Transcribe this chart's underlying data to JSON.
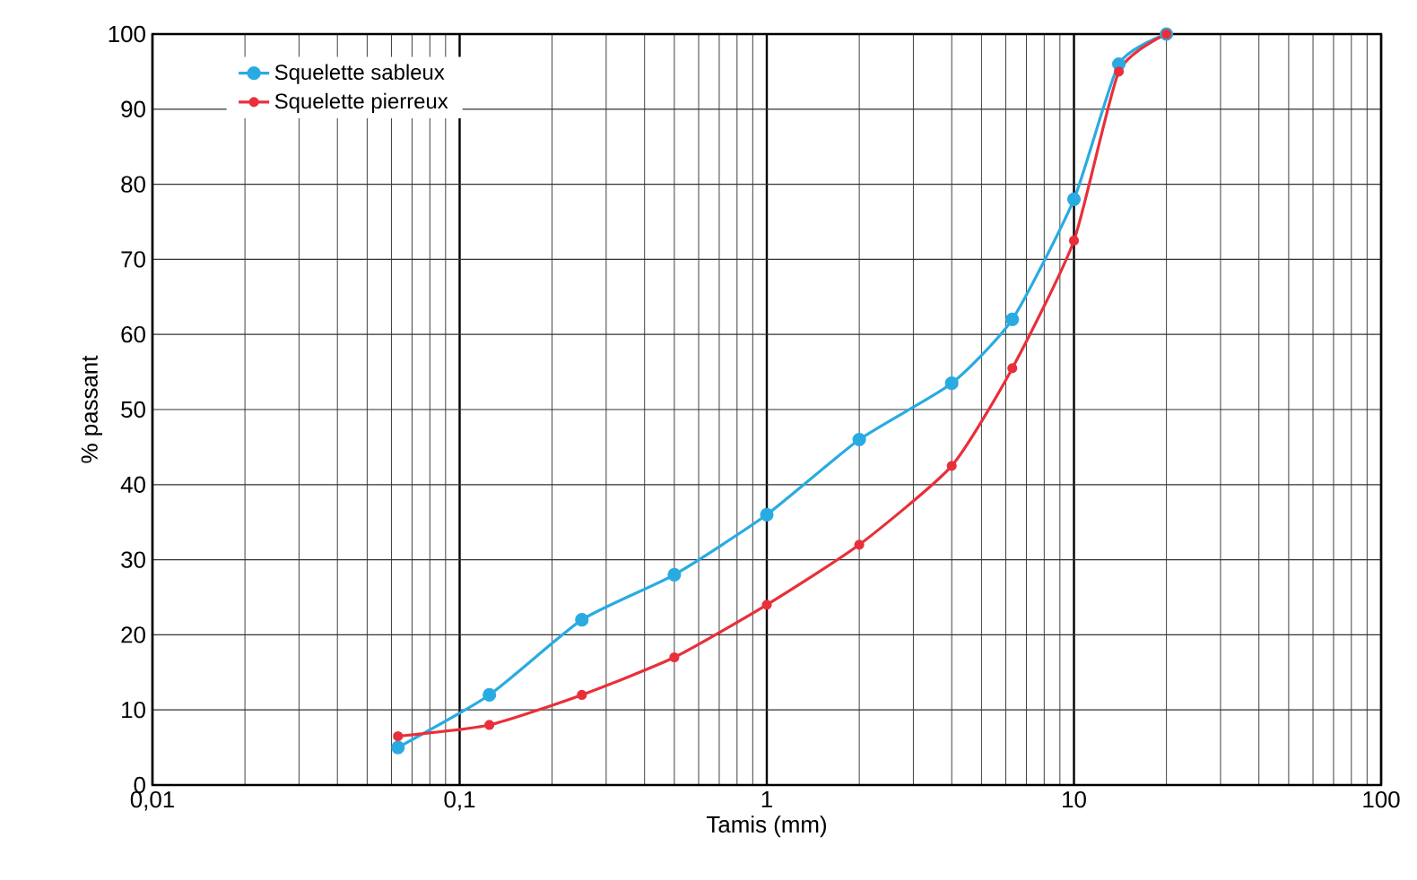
{
  "chart_data": {
    "type": "line",
    "xlabel": "Tamis (mm)",
    "ylabel": "% passant",
    "x": [
      0.063,
      0.125,
      0.25,
      0.5,
      1,
      2,
      4,
      6.3,
      10,
      14,
      20
    ],
    "series": [
      {
        "name": "Squelette sableux",
        "color": "#29abe2",
        "values": [
          5,
          12,
          22,
          28,
          36,
          46,
          53.5,
          62,
          78,
          96,
          100
        ]
      },
      {
        "name": "Squelette pierreux",
        "color": "#e8303a",
        "values": [
          6.5,
          8,
          12,
          17,
          24,
          32,
          42.5,
          55.5,
          72.5,
          95,
          100
        ]
      }
    ],
    "log": "x",
    "xlim": [
      0.01,
      100
    ],
    "ylim": [
      0,
      100
    ],
    "xticks": [
      {
        "value": 0.01,
        "label": "0,01"
      },
      {
        "value": 0.1,
        "label": "0,1"
      },
      1,
      10,
      100
    ],
    "yticks": [
      0,
      10,
      20,
      30,
      40,
      50,
      60,
      70,
      80,
      90,
      100
    ],
    "grid": true,
    "legend": "top left",
    "marker": "circle",
    "line_style": "solid"
  }
}
